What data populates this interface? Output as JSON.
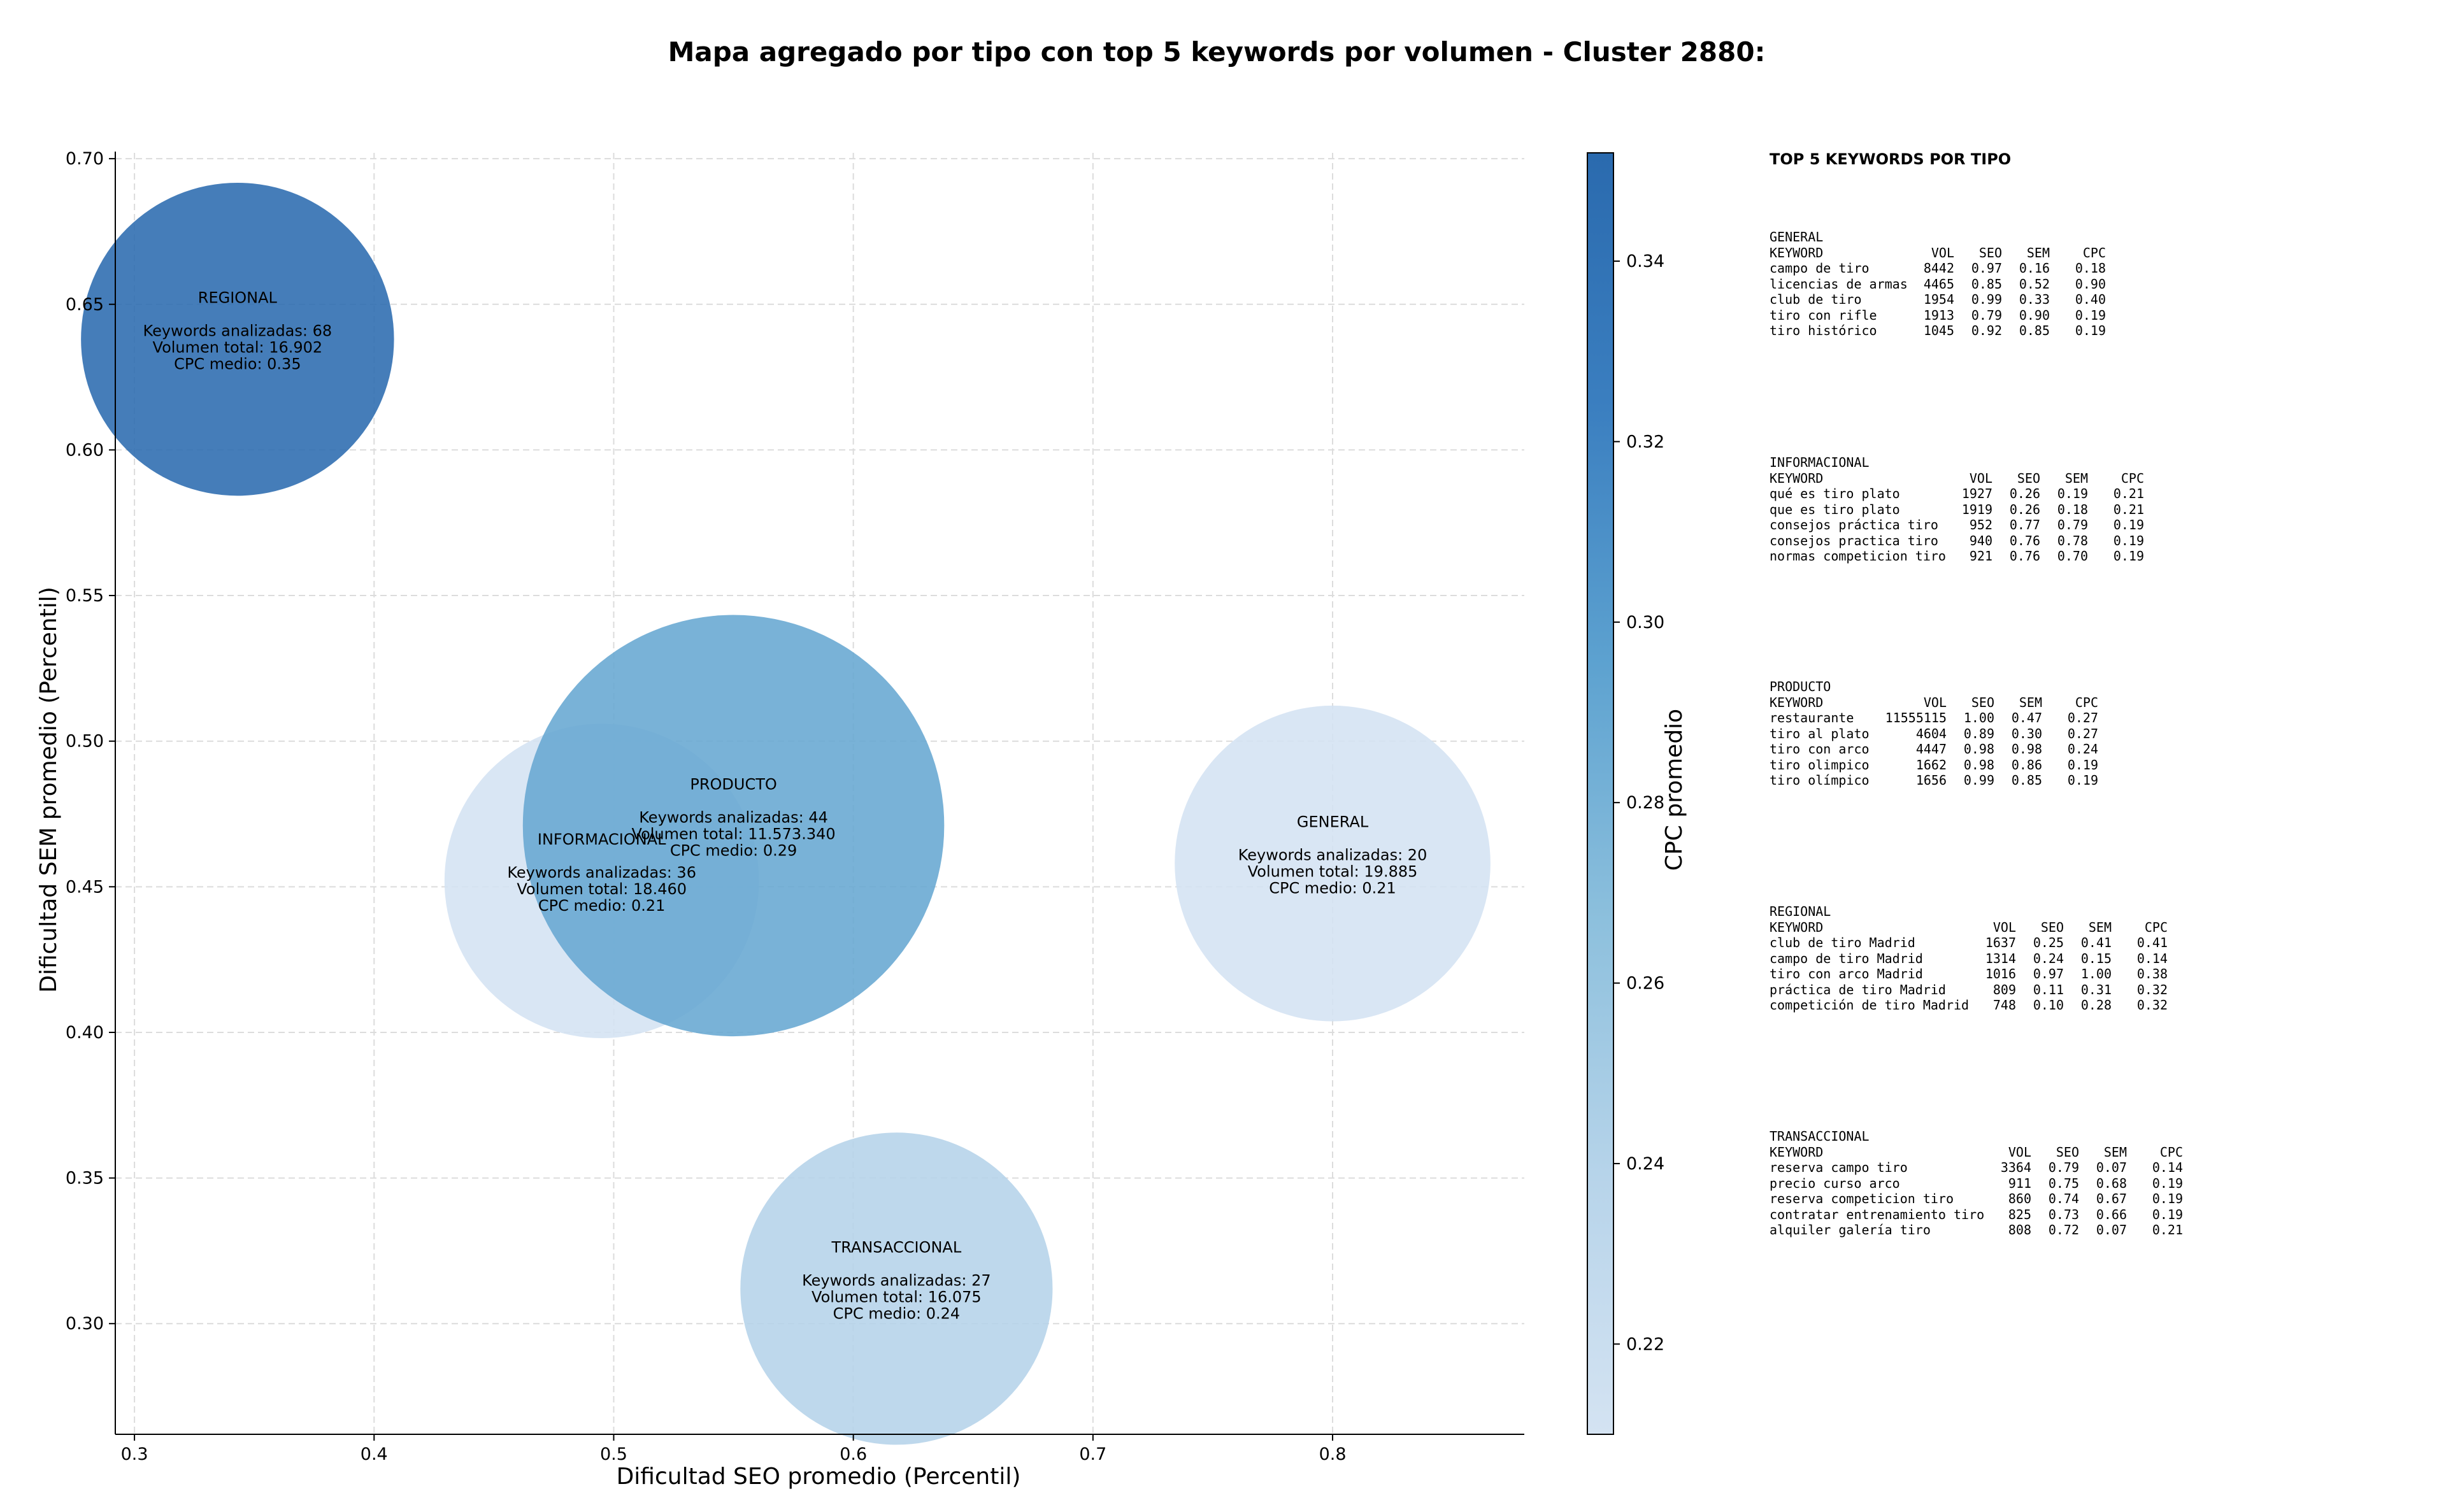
{
  "chart_data": {
    "type": "scatter",
    "variant": "bubble",
    "title": "Mapa agregado por tipo con top 5 keywords por volumen - Cluster 2880:",
    "xlabel": "Dificultad SEO promedio (Percentil)",
    "ylabel": "Dificultad SEM promedio (Percentil)",
    "xlim": [
      0.292,
      0.88
    ],
    "ylim": [
      0.262,
      0.702
    ],
    "xticks": [
      "0.3",
      "0.4",
      "0.5",
      "0.6",
      "0.7",
      "0.8"
    ],
    "yticks": [
      "0.30",
      "0.35",
      "0.40",
      "0.45",
      "0.50",
      "0.55",
      "0.60",
      "0.65",
      "0.70"
    ],
    "grid": true,
    "colorbar": {
      "label": "CPC promedio",
      "range": [
        0.21,
        0.352
      ],
      "ticks": [
        "0.22",
        "0.24",
        "0.26",
        "0.28",
        "0.30",
        "0.32",
        "0.34"
      ],
      "colors": [
        "#d4e3f2",
        "#b7d4ea",
        "#8dc0dd",
        "#5da2d0",
        "#3b7fc0",
        "#2a6aae"
      ]
    },
    "points": [
      {
        "name": "GENERAL",
        "x": 0.8,
        "y": 0.458,
        "cpc": 0.21,
        "volume": 19885,
        "text": [
          "GENERAL",
          "",
          "Keywords analizadas: 20",
          "Volumen total: 19.885",
          "CPC medio: 0.21"
        ]
      },
      {
        "name": "INFORMACIONAL",
        "x": 0.495,
        "y": 0.452,
        "cpc": 0.21,
        "volume": 18460,
        "text": [
          "INFORMACIONAL",
          "",
          "Keywords analizadas: 36",
          "Volumen total: 18.460",
          "CPC medio: 0.21"
        ]
      },
      {
        "name": "PRODUCTO",
        "x": 0.55,
        "y": 0.471,
        "cpc": 0.29,
        "volume": 11573340,
        "text": [
          "PRODUCTO",
          "",
          "Keywords analizadas: 44",
          "Volumen total: 11.573.340",
          "CPC medio: 0.29"
        ]
      },
      {
        "name": "REGIONAL",
        "x": 0.343,
        "y": 0.638,
        "cpc": 0.35,
        "volume": 16902,
        "text": [
          "REGIONAL",
          "",
          "Keywords analizadas: 68",
          "Volumen total: 16.902",
          "CPC medio: 0.35"
        ]
      },
      {
        "name": "TRANSACCIONAL",
        "x": 0.618,
        "y": 0.312,
        "cpc": 0.24,
        "volume": 16075,
        "text": [
          "TRANSACCIONAL",
          "",
          "Keywords analizadas: 27",
          "Volumen total: 16.075",
          "CPC medio: 0.24"
        ]
      }
    ]
  },
  "side_panel": {
    "title": "TOP 5 KEYWORDS POR TIPO",
    "columns": [
      "KEYWORD",
      "VOL",
      "SEO",
      "SEM",
      "CPC"
    ],
    "groups": [
      {
        "name": "GENERAL",
        "rows": [
          [
            "campo de tiro",
            "8442",
            "0.97",
            "0.16",
            "0.18"
          ],
          [
            "licencias de armas",
            "4465",
            "0.85",
            "0.52",
            "0.90"
          ],
          [
            "club de tiro",
            "1954",
            "0.99",
            "0.33",
            "0.40"
          ],
          [
            "tiro con rifle",
            "1913",
            "0.79",
            "0.90",
            "0.19"
          ],
          [
            "tiro histórico",
            "1045",
            "0.92",
            "0.85",
            "0.19"
          ]
        ]
      },
      {
        "name": "INFORMACIONAL",
        "rows": [
          [
            "qué es tiro plato",
            "1927",
            "0.26",
            "0.19",
            "0.21"
          ],
          [
            "que es tiro plato",
            "1919",
            "0.26",
            "0.18",
            "0.21"
          ],
          [
            "consejos práctica tiro",
            "952",
            "0.77",
            "0.79",
            "0.19"
          ],
          [
            "consejos practica tiro",
            "940",
            "0.76",
            "0.78",
            "0.19"
          ],
          [
            "normas competicion tiro",
            "921",
            "0.76",
            "0.70",
            "0.19"
          ]
        ]
      },
      {
        "name": "PRODUCTO",
        "rows": [
          [
            "restaurante",
            "11555115",
            "1.00",
            "0.47",
            "0.27"
          ],
          [
            "tiro al plato",
            "4604",
            "0.89",
            "0.30",
            "0.27"
          ],
          [
            "tiro con arco",
            "4447",
            "0.98",
            "0.98",
            "0.24"
          ],
          [
            "tiro olimpico",
            "1662",
            "0.98",
            "0.86",
            "0.19"
          ],
          [
            "tiro olímpico",
            "1656",
            "0.99",
            "0.85",
            "0.19"
          ]
        ]
      },
      {
        "name": "REGIONAL",
        "rows": [
          [
            "club de tiro Madrid",
            "1637",
            "0.25",
            "0.41",
            "0.41"
          ],
          [
            "campo de tiro Madrid",
            "1314",
            "0.24",
            "0.15",
            "0.14"
          ],
          [
            "tiro con arco Madrid",
            "1016",
            "0.97",
            "1.00",
            "0.38"
          ],
          [
            "práctica de tiro Madrid",
            "809",
            "0.11",
            "0.31",
            "0.32"
          ],
          [
            "competición de tiro Madrid",
            "748",
            "0.10",
            "0.28",
            "0.32"
          ]
        ]
      },
      {
        "name": "TRANSACCIONAL",
        "rows": [
          [
            "reserva campo tiro",
            "3364",
            "0.79",
            "0.07",
            "0.14"
          ],
          [
            "precio curso arco",
            "911",
            "0.75",
            "0.68",
            "0.19"
          ],
          [
            "reserva competicion tiro",
            "860",
            "0.74",
            "0.67",
            "0.19"
          ],
          [
            "contratar entrenamiento tiro",
            "825",
            "0.73",
            "0.66",
            "0.19"
          ],
          [
            "alquiler galería tiro",
            "808",
            "0.72",
            "0.07",
            "0.21"
          ]
        ]
      }
    ]
  }
}
